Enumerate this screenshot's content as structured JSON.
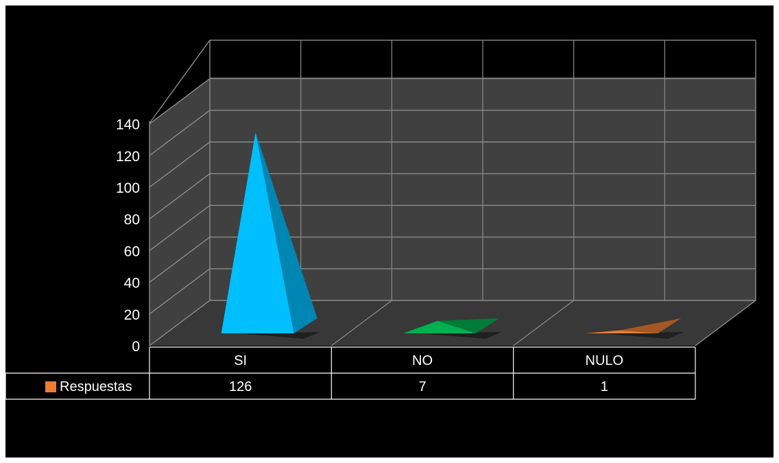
{
  "chart_data": {
    "type": "bar",
    "style": "3d-pyramid",
    "categories": [
      "SI",
      "NO",
      "NULO"
    ],
    "series": [
      {
        "name": "Respuestas",
        "values": [
          126,
          7,
          1
        ],
        "value_labels": [
          "126",
          "7",
          "1"
        ]
      }
    ],
    "bar_colors": [
      "#00bfff",
      "#00b050",
      "#ed7d31"
    ],
    "legend_color": "#ed7d31",
    "ylim": [
      0,
      140
    ],
    "yticks": [
      "0",
      "20",
      "40",
      "60",
      "80",
      "100",
      "120",
      "140"
    ],
    "grid": true,
    "legend": "data-table",
    "background": "#000000",
    "wall_color": "#404040",
    "title": "",
    "xlabel": "",
    "ylabel": ""
  }
}
